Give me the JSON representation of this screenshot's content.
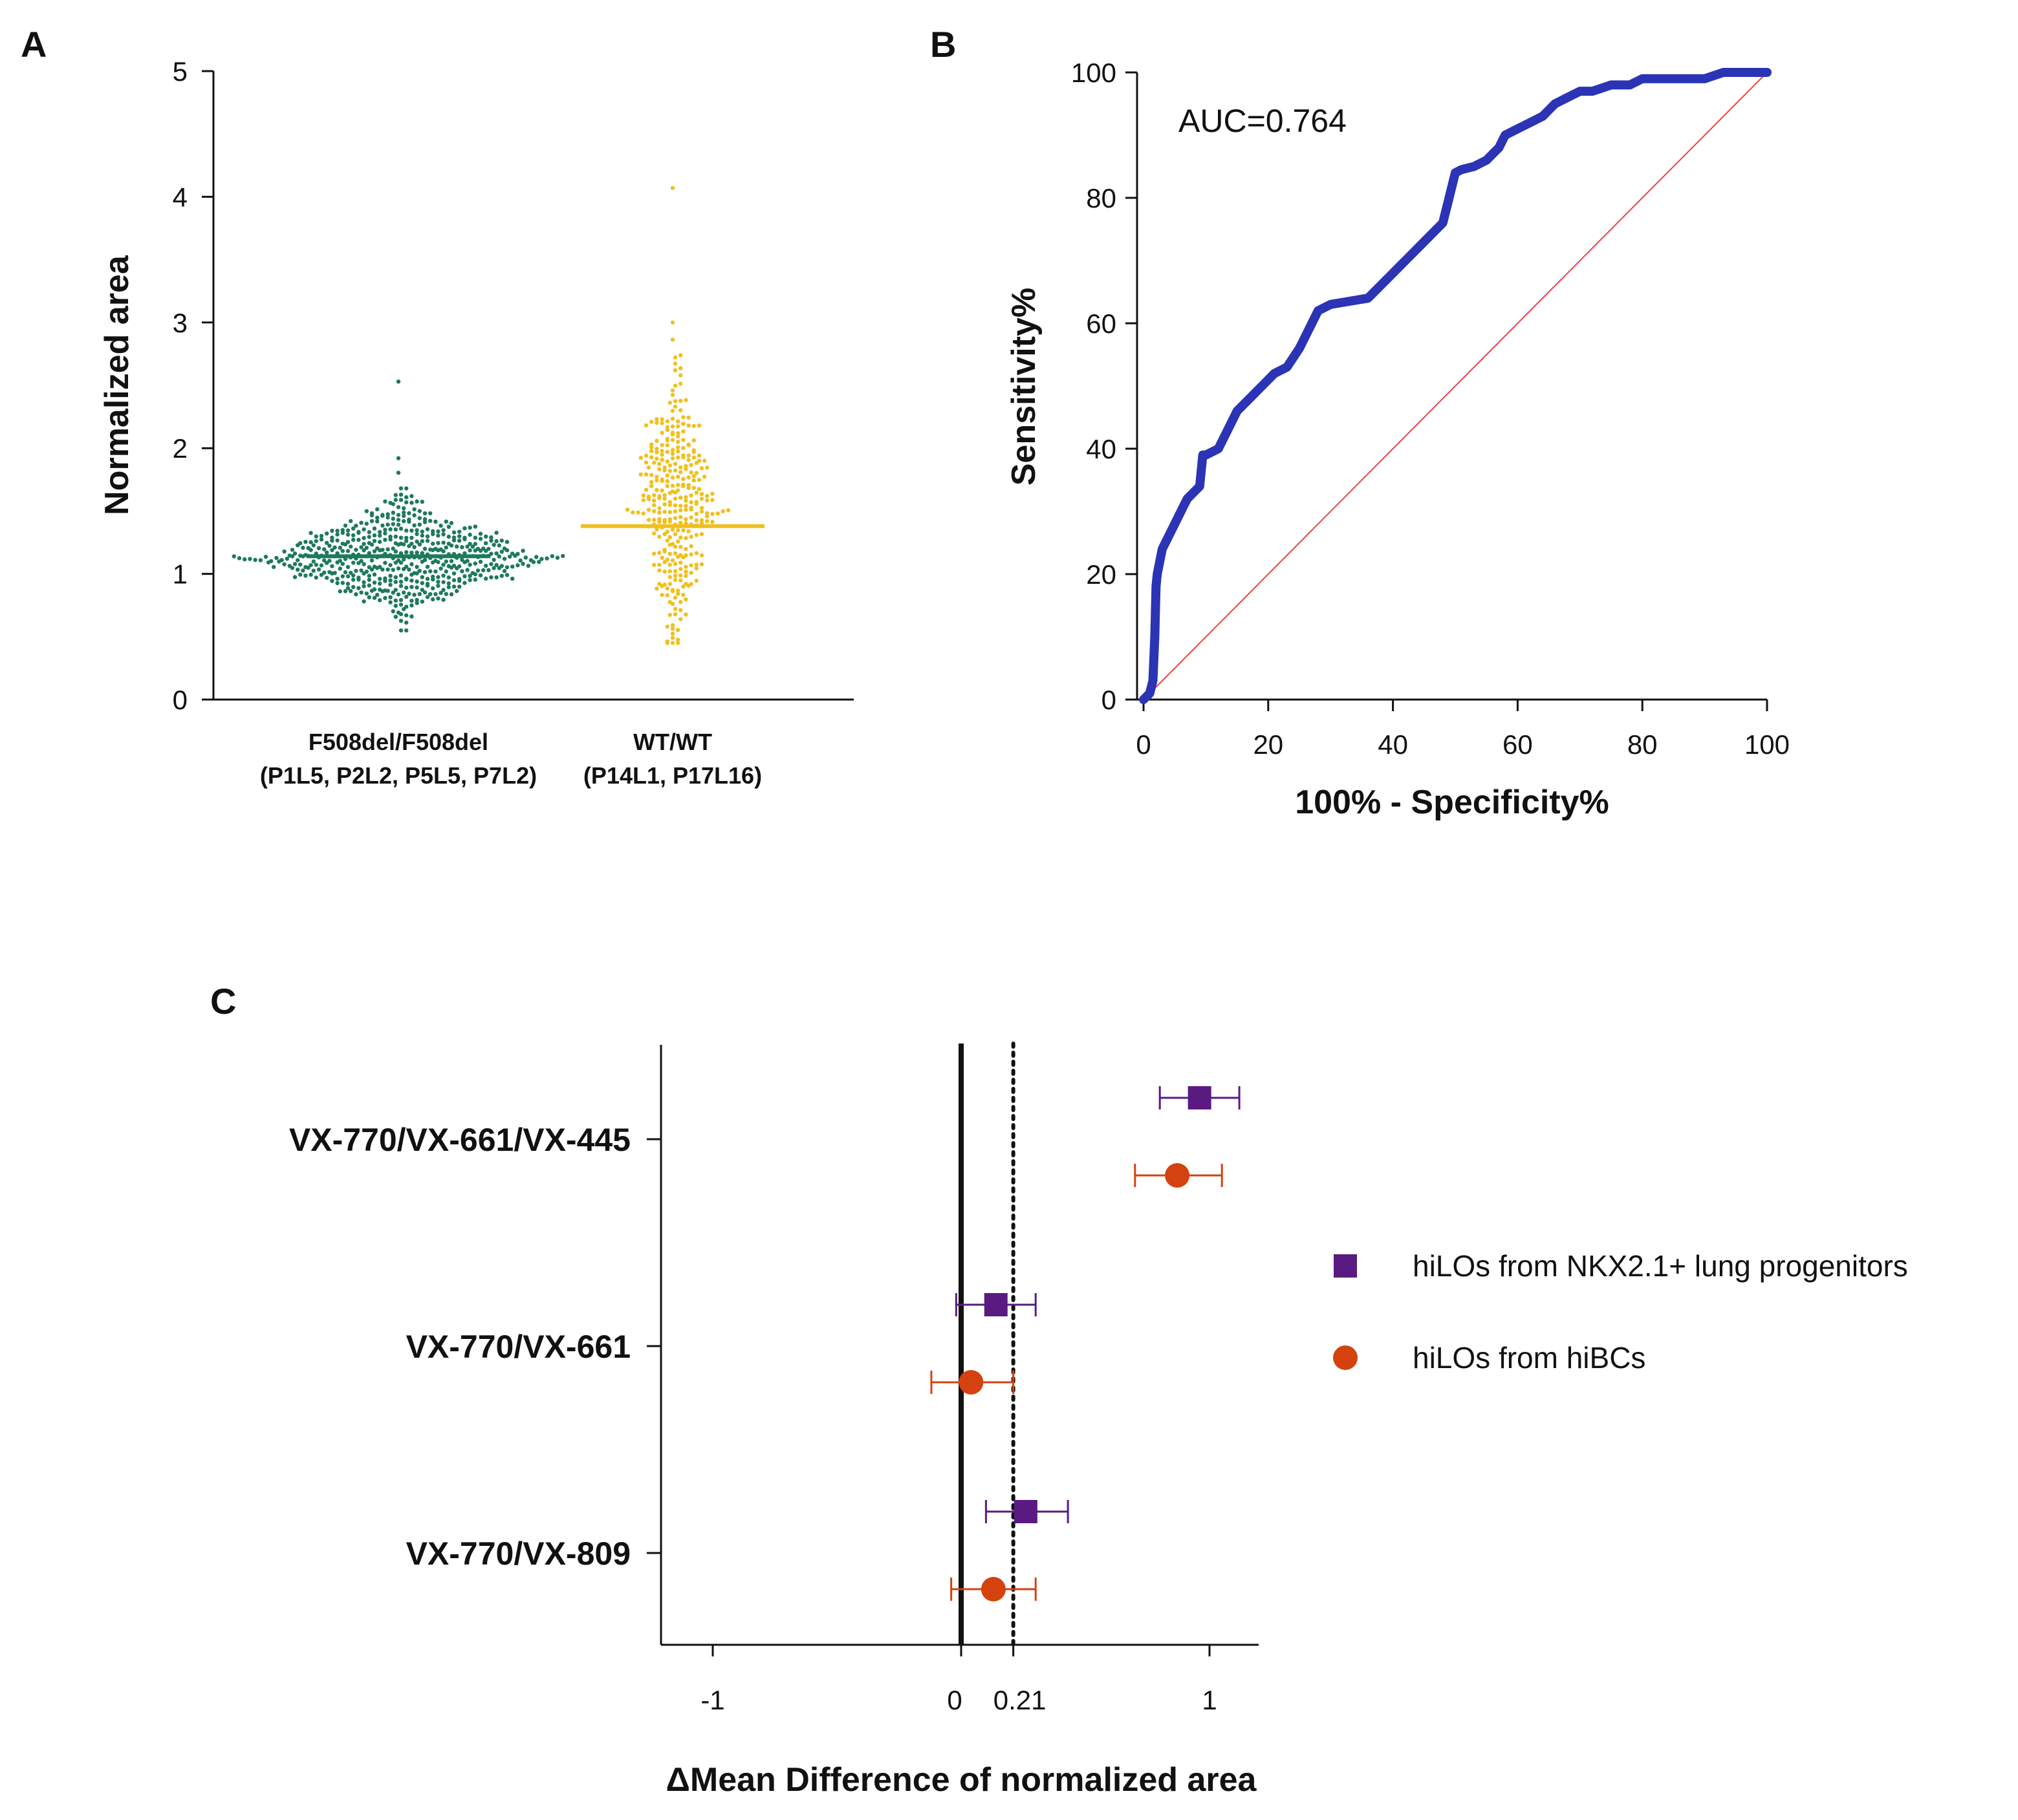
{
  "panels": {
    "A": {
      "letter": "A"
    },
    "B": {
      "letter": "B"
    },
    "C": {
      "letter": "C"
    }
  },
  "chart_data": [
    {
      "id": "A",
      "type": "scatter",
      "ylabel": "Normalized area",
      "xlabel": "",
      "ylim": [
        0,
        5
      ],
      "yticks": [
        0,
        1,
        2,
        3,
        4,
        5
      ],
      "groups": [
        {
          "name": "F508del/F508del",
          "sublabel": "(P1L5, P2L2, P5L5, P7L2)",
          "color": "#1d7a5c",
          "n": 560,
          "mean": 1.14,
          "sd": 0.21,
          "min": 0.55,
          "max": 2.53
        },
        {
          "name": "WT/WT",
          "sublabel": "(P14L1, P17L16)",
          "color": "#f0c020",
          "n": 330,
          "mean": 1.38,
          "sd": 0.47,
          "min": 0.45,
          "max": 4.07
        }
      ]
    },
    {
      "id": "B",
      "type": "line",
      "xlabel": "100% - Specificity%",
      "ylabel": "Sensitivity%",
      "xlim": [
        0,
        100
      ],
      "ylim": [
        0,
        100
      ],
      "xticks": [
        0,
        20,
        40,
        60,
        80,
        100
      ],
      "yticks": [
        0,
        20,
        40,
        60,
        80,
        100
      ],
      "annotation": "AUC=0.764",
      "series": [
        {
          "name": "ROC",
          "color": "#2b34b4",
          "x": [
            0,
            1,
            1.5,
            1.8,
            2,
            2.2,
            3,
            4,
            5,
            6,
            7,
            8,
            9,
            9.5,
            10,
            12,
            14,
            15,
            17,
            19,
            21,
            23,
            25,
            27,
            28,
            30,
            33,
            36,
            38,
            40,
            42,
            44,
            46,
            48,
            49,
            50,
            51,
            53,
            55,
            56,
            57,
            58,
            60,
            62,
            64,
            66,
            68,
            70,
            72,
            75,
            78,
            80,
            85,
            90,
            93,
            95,
            97,
            100
          ],
          "y": [
            0,
            1,
            3,
            10,
            18,
            20,
            24,
            26,
            28,
            30,
            32,
            33,
            34,
            39,
            39,
            40,
            44,
            46,
            48,
            50,
            52,
            53,
            56,
            60,
            62,
            63,
            63.5,
            64,
            66,
            68,
            70,
            72,
            74,
            76,
            80,
            84,
            84.5,
            85,
            86,
            87,
            88,
            90,
            91,
            92,
            93,
            95,
            96,
            97,
            97,
            98,
            98,
            99,
            99,
            99,
            100,
            100,
            100,
            100
          ]
        },
        {
          "name": "Reference",
          "color": "#e84545",
          "x": [
            0,
            100
          ],
          "y": [
            0,
            100
          ]
        }
      ]
    },
    {
      "id": "C",
      "type": "scatter",
      "xlabel": "ΔMean Difference of normalized area",
      "ylabel": "",
      "xlim": [
        -1.2,
        1.2
      ],
      "xticks": [
        {
          "value": -1,
          "label": "-1"
        },
        {
          "value": 0,
          "label": "0"
        },
        {
          "value": 0.21,
          "label": "0.21"
        },
        {
          "value": 1,
          "label": "1"
        }
      ],
      "reference_lines": [
        {
          "value": 0,
          "style": "solid"
        },
        {
          "value": 0.21,
          "style": "dotted"
        }
      ],
      "categories": [
        "VX-770/VX-661/VX-445",
        "VX-770/VX-661",
        "VX-770/VX-809"
      ],
      "series": [
        {
          "name": "hiLOs from NKX2.1+ lung progenitors",
          "marker": "square",
          "color": "#5a1a82",
          "values": [
            0.96,
            0.14,
            0.26
          ],
          "err_low": [
            0.8,
            -0.02,
            0.1
          ],
          "err_high": [
            1.12,
            0.3,
            0.43
          ]
        },
        {
          "name": "hiLOs from hiBCs",
          "marker": "circle",
          "color": "#d4420f",
          "values": [
            0.87,
            0.04,
            0.13
          ],
          "err_low": [
            0.7,
            -0.12,
            -0.04
          ],
          "err_high": [
            1.05,
            0.21,
            0.3
          ]
        }
      ]
    }
  ]
}
